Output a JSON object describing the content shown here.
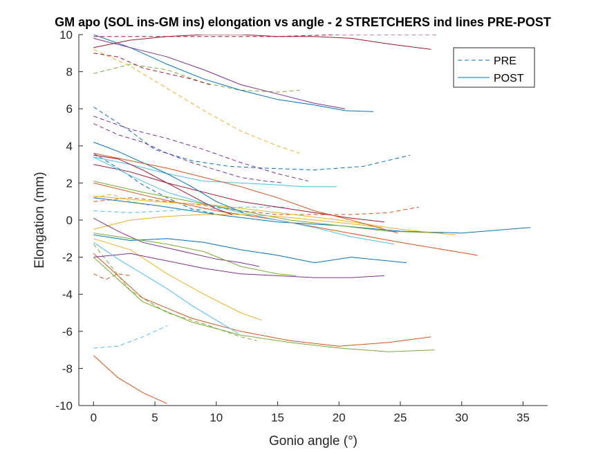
{
  "chart_data": {
    "type": "line",
    "title": "GM apo (SOL ins-GM ins) elongation vs angle - 2 STRETCHERS ind lines PRE-POST",
    "xlabel": "Gonio angle (°)",
    "ylabel": "Elongation (mm)",
    "xlim": [
      -1.2,
      37
    ],
    "ylim": [
      -10,
      10
    ],
    "xticks": [
      0,
      5,
      10,
      15,
      20,
      25,
      30,
      35
    ],
    "yticks": [
      -10,
      -8,
      -6,
      -4,
      -2,
      0,
      2,
      4,
      6,
      8,
      10
    ],
    "grid": false,
    "legend": {
      "location": "top-right",
      "entries": [
        {
          "label": "PRE",
          "style": "dashed",
          "color": "#0072BD"
        },
        {
          "label": "POST",
          "style": "solid",
          "color": "#0072BD"
        }
      ]
    },
    "series": [
      {
        "style": "dashed",
        "color": "#0072BD",
        "x": [
          0,
          3,
          5,
          8,
          11,
          14,
          18,
          22,
          25.8
        ],
        "y": [
          6.1,
          4.8,
          3.8,
          3.2,
          2.9,
          2.8,
          2.7,
          2.9,
          3.5
        ]
      },
      {
        "style": "dashed",
        "color": "#D95319",
        "x": [
          0,
          3,
          6,
          9,
          12,
          15,
          18,
          21,
          24,
          26.5
        ],
        "y": [
          1.0,
          1.2,
          1.0,
          0.8,
          0.5,
          0.3,
          0.3,
          0.3,
          0.4,
          0.7
        ]
      },
      {
        "style": "dashed",
        "color": "#EDB120",
        "x": [
          0,
          3,
          6,
          9,
          12,
          15,
          16.8
        ],
        "y": [
          9.2,
          8.3,
          7.1,
          5.9,
          4.8,
          4.0,
          3.6
        ]
      },
      {
        "style": "dashed",
        "color": "#7E2F8E",
        "x": [
          0,
          2,
          4,
          6,
          8,
          10,
          12,
          14,
          15.5
        ],
        "y": [
          5.2,
          4.6,
          4.2,
          3.6,
          3.1,
          2.7,
          2.3,
          2.1,
          2.0
        ]
      },
      {
        "style": "dashed",
        "color": "#77AC30",
        "x": [
          0,
          3,
          6,
          9,
          12,
          15,
          16.8
        ],
        "y": [
          7.9,
          8.4,
          8.1,
          7.4,
          7.0,
          6.9,
          7.0
        ]
      },
      {
        "style": "dashed",
        "color": "#4DBEEE",
        "x": [
          0,
          2,
          4,
          6
        ],
        "y": [
          -6.9,
          -6.8,
          -6.3,
          -5.7
        ]
      },
      {
        "style": "dashed",
        "color": "#A2142F",
        "x": [
          0,
          5,
          10,
          15,
          20,
          25,
          28
        ],
        "y": [
          9.9,
          9.9,
          9.9,
          9.9,
          10.0,
          10.0,
          10.0
        ]
      },
      {
        "style": "dashed",
        "color": "#0072BD",
        "x": [
          0,
          2,
          4,
          6,
          8,
          10.2
        ],
        "y": [
          3.6,
          2.8,
          1.9,
          1.2,
          0.6,
          0.3
        ]
      },
      {
        "style": "dashed",
        "color": "#D95319",
        "x": [
          0,
          1,
          2,
          3
        ],
        "y": [
          -2.9,
          -3.2,
          -2.9,
          -3.0
        ]
      },
      {
        "style": "dashed",
        "color": "#EDB120",
        "x": [
          0,
          1.5,
          3,
          4.5
        ],
        "y": [
          1.2,
          1.4,
          1.0,
          0.8
        ]
      },
      {
        "style": "dashed",
        "color": "#7E2F8E",
        "x": [
          0,
          3,
          6,
          9,
          12,
          15,
          17.5
        ],
        "y": [
          5.6,
          4.9,
          4.4,
          3.8,
          3.1,
          2.5,
          2.1
        ]
      },
      {
        "style": "dashed",
        "color": "#77AC30",
        "x": [
          0,
          3,
          6,
          9,
          12,
          13.3
        ],
        "y": [
          -1.3,
          -3.8,
          -5.0,
          -5.6,
          -6.3,
          -6.5
        ]
      },
      {
        "style": "dashed",
        "color": "#4DBEEE",
        "x": [
          0,
          3,
          6,
          9,
          12,
          15.8
        ],
        "y": [
          0.5,
          0.4,
          0.5,
          0.6,
          0.7,
          0.7
        ]
      },
      {
        "style": "dashed",
        "color": "#A2142F",
        "x": [
          0,
          2,
          4,
          6,
          8,
          9.5
        ],
        "y": [
          9.0,
          8.8,
          8.2,
          7.9,
          7.6,
          7.3
        ]
      },
      {
        "style": "solid",
        "color": "#0072BD",
        "x": [
          0,
          3,
          6,
          9,
          12,
          15,
          18,
          20.5,
          22.8
        ],
        "y": [
          10.0,
          9.3,
          8.4,
          7.6,
          7.0,
          6.5,
          6.2,
          5.9,
          5.85
        ]
      },
      {
        "style": "solid",
        "color": "#D95319",
        "x": [
          0,
          4,
          8,
          12,
          16,
          20,
          24,
          27.5
        ],
        "y": [
          -1.8,
          -4.2,
          -5.3,
          -6.0,
          -6.5,
          -6.8,
          -6.6,
          -6.3
        ]
      },
      {
        "style": "solid",
        "color": "#EDB120",
        "x": [
          0,
          3,
          6,
          9,
          12,
          13.7
        ],
        "y": [
          -1.0,
          -1.6,
          -2.9,
          -4.0,
          -5.0,
          -5.4
        ]
      },
      {
        "style": "solid",
        "color": "#7E2F8E",
        "x": [
          0,
          3,
          6,
          9,
          12,
          15,
          18,
          21,
          23.7
        ],
        "y": [
          -2.0,
          -1.8,
          -2.2,
          -2.6,
          -2.9,
          -3.0,
          -3.1,
          -3.1,
          -3.0
        ]
      },
      {
        "style": "solid",
        "color": "#77AC30",
        "x": [
          0,
          4,
          8,
          12,
          16,
          20,
          24,
          27.8
        ],
        "y": [
          -2.0,
          -4.4,
          -5.5,
          -6.2,
          -6.6,
          -6.9,
          -7.1,
          -7.0
        ]
      },
      {
        "style": "solid",
        "color": "#4DBEEE",
        "x": [
          0,
          3,
          6,
          9,
          12,
          15,
          17,
          19.8
        ],
        "y": [
          3.4,
          3.0,
          2.5,
          2.1,
          2.0,
          1.9,
          1.8,
          1.8
        ]
      },
      {
        "style": "solid",
        "color": "#A2142F",
        "x": [
          0,
          3,
          6,
          9,
          12,
          15,
          18,
          21,
          23.7
        ],
        "y": [
          3.0,
          2.6,
          2.0,
          1.5,
          1.0,
          0.7,
          0.4,
          0.1,
          -0.1
        ]
      },
      {
        "style": "solid",
        "color": "#0072BD",
        "x": [
          0,
          5,
          10,
          15,
          20,
          25,
          30,
          35.6
        ],
        "y": [
          1.2,
          0.8,
          0.3,
          -0.1,
          -0.3,
          -0.6,
          -0.7,
          -0.4
        ]
      },
      {
        "style": "solid",
        "color": "#D95319",
        "x": [
          0,
          5,
          10,
          15,
          20,
          25,
          31.3
        ],
        "y": [
          2.0,
          1.2,
          0.5,
          0.0,
          -0.6,
          -1.2,
          -1.9
        ]
      },
      {
        "style": "solid",
        "color": "#EDB120",
        "x": [
          0,
          5,
          10,
          15,
          20,
          25,
          29.5
        ],
        "y": [
          1.3,
          1.0,
          0.8,
          0.4,
          0.0,
          -0.5,
          -0.8
        ]
      },
      {
        "style": "solid",
        "color": "#7E2F8E",
        "x": [
          0,
          3,
          6,
          9,
          12,
          15,
          18,
          20.5
        ],
        "y": [
          9.8,
          9.3,
          8.8,
          8.1,
          7.3,
          6.8,
          6.3,
          6.0
        ]
      },
      {
        "style": "solid",
        "color": "#77AC30",
        "x": [
          0,
          4,
          8,
          12,
          16,
          20,
          24,
          28.5
        ],
        "y": [
          2.1,
          1.5,
          1.0,
          0.5,
          0.0,
          -0.3,
          -0.6,
          -0.7
        ]
      },
      {
        "style": "solid",
        "color": "#4DBEEE",
        "x": [
          0,
          2,
          4,
          6,
          8,
          10,
          11.8
        ],
        "y": [
          -1.2,
          -2.1,
          -2.9,
          -3.7,
          -4.6,
          -5.4,
          -6.1
        ]
      },
      {
        "style": "solid",
        "color": "#A2142F",
        "x": [
          0,
          3,
          6,
          9,
          12,
          15,
          18,
          21,
          24,
          27.5
        ],
        "y": [
          9.3,
          9.7,
          9.9,
          10.0,
          10.0,
          9.9,
          9.9,
          9.8,
          9.5,
          9.2
        ]
      },
      {
        "style": "solid",
        "color": "#0072BD",
        "x": [
          0,
          3,
          6,
          9,
          12,
          15,
          18,
          21,
          25.5
        ],
        "y": [
          -0.8,
          -1.1,
          -1.0,
          -1.2,
          -1.6,
          -1.9,
          -2.3,
          -2.0,
          -2.3
        ]
      },
      {
        "style": "solid",
        "color": "#D95319",
        "x": [
          0,
          2,
          4,
          6
        ],
        "y": [
          -7.3,
          -8.5,
          -9.3,
          -9.9
        ]
      },
      {
        "style": "solid",
        "color": "#EDB120",
        "x": [
          0,
          3,
          6,
          9,
          12,
          15,
          18,
          21,
          23.5
        ],
        "y": [
          -0.5,
          0.0,
          0.2,
          0.3,
          0.3,
          0.2,
          0.0,
          -0.2,
          -0.4
        ]
      },
      {
        "style": "solid",
        "color": "#7E2F8E",
        "x": [
          0,
          2,
          4,
          6,
          8,
          10,
          12,
          13.5
        ],
        "y": [
          0.1,
          -0.6,
          -1.2,
          -1.5,
          -1.8,
          -2.1,
          -2.3,
          -2.5
        ]
      },
      {
        "style": "solid",
        "color": "#77AC30",
        "x": [
          0,
          3,
          6,
          9,
          12,
          15,
          16.5
        ],
        "y": [
          -0.7,
          -1.0,
          -1.3,
          -1.7,
          -2.5,
          -2.9,
          -3.0
        ]
      },
      {
        "style": "solid",
        "color": "#4DBEEE",
        "x": [
          0,
          3,
          6,
          9,
          12,
          15,
          18,
          21,
          24.5
        ],
        "y": [
          3.4,
          2.4,
          1.5,
          0.9,
          0.4,
          0.0,
          -0.4,
          -0.9,
          -1.3
        ]
      },
      {
        "style": "solid",
        "color": "#A2142F",
        "x": [
          0,
          2,
          4,
          6,
          8,
          10,
          11.3
        ],
        "y": [
          3.5,
          3.3,
          2.7,
          2.0,
          1.3,
          0.6,
          0.3
        ]
      },
      {
        "style": "solid",
        "color": "#0072BD",
        "x": [
          0,
          2,
          4,
          6,
          8,
          10,
          12.2
        ],
        "y": [
          4.2,
          3.7,
          3.1,
          2.5,
          1.8,
          1.0,
          0.4
        ]
      },
      {
        "style": "solid",
        "color": "#D95319",
        "x": [
          0,
          3,
          6,
          9,
          12,
          15,
          18,
          21,
          24.8
        ],
        "y": [
          3.6,
          3.2,
          2.8,
          2.3,
          1.8,
          1.2,
          0.5,
          0.0,
          -0.7
        ]
      }
    ]
  }
}
